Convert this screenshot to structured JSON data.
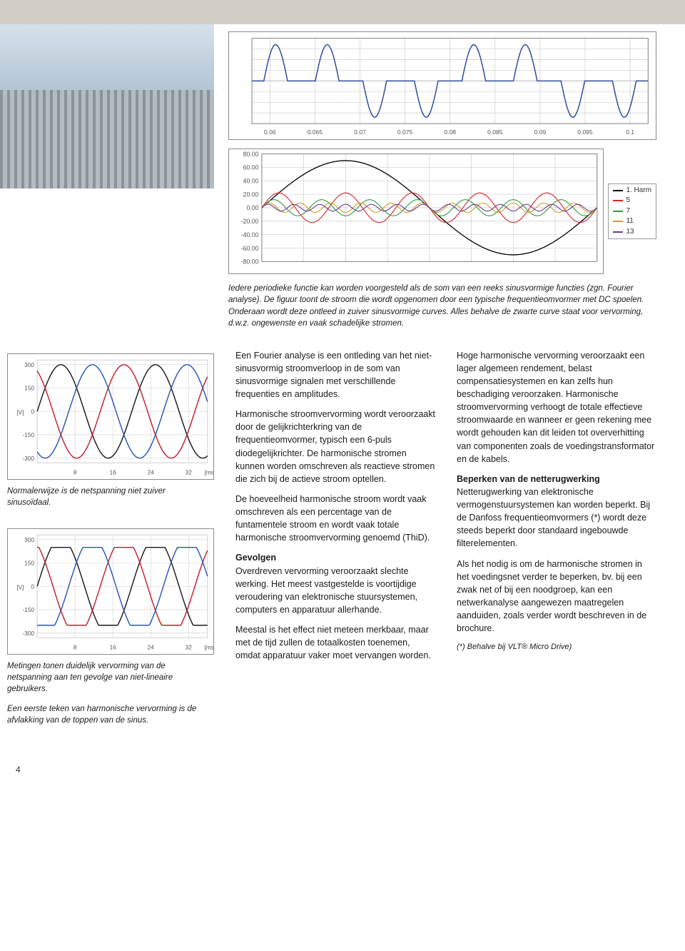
{
  "top_caption": "Iedere periodieke functie kan worden voorgesteld als de som van een reeks sinusvormige functies (zgn. Fourier analyse). De figuur toont de stroom die wordt opgenomen door een typische frequentieomvormer met DC spoelen. Onderaan wordt deze ontleed in zuiver sinusvormige curves. Alles behalve de zwarte curve staat voor vervorming, d.w.z. ongewenste en vaak schadelijke stromen.",
  "chart_pulse": {
    "type": "line",
    "xticks": [
      0.06,
      0.065,
      0.07,
      0.075,
      0.08,
      0.085,
      0.09,
      0.095,
      0.1
    ],
    "xlim": [
      0.058,
      0.102
    ],
    "ylim": [
      -100,
      100
    ],
    "background": "#ffffff",
    "gridline_color": "#c0c0c0",
    "border_color": "#8a8a8a",
    "series": [
      {
        "name": "current",
        "color": "#2e4ea0",
        "width": 1.4
      }
    ],
    "tick_fontsize": 8
  },
  "chart_harmonics": {
    "type": "line",
    "xticks": [
      1,
      2,
      3,
      4,
      5,
      6,
      7,
      8
    ],
    "xlim": [
      0,
      8
    ],
    "ylim": [
      -80,
      80
    ],
    "yticks": [
      -80,
      -60,
      -40,
      -20,
      0,
      20,
      40,
      60,
      80
    ],
    "ytick_labels": [
      "-80.00",
      "-60.00",
      "-40.00",
      "-20.00",
      "0.00",
      "20.00",
      "40.00",
      "60.00",
      "80.00"
    ],
    "background": "#ffffff",
    "gridline_color": "#c0c0c0",
    "border_color": "#8a8a8a",
    "legend_items": [
      {
        "label": "1. Harm",
        "color": "#000000"
      },
      {
        "label": "5",
        "color": "#d8232a"
      },
      {
        "label": "7",
        "color": "#2e9b3e"
      },
      {
        "label": "11",
        "color": "#d29a2a"
      },
      {
        "label": "13",
        "color": "#6a3c8f"
      }
    ],
    "series": [
      {
        "name": "h1",
        "color": "#000000",
        "amp": 70,
        "freq": 1,
        "width": 1.2
      },
      {
        "name": "h5",
        "color": "#d8232a",
        "amp": 22,
        "freq": 5,
        "width": 1
      },
      {
        "name": "h7",
        "color": "#2e9b3e",
        "amp": 12,
        "freq": 7,
        "width": 1
      },
      {
        "name": "h11",
        "color": "#d29a2a",
        "amp": 7,
        "freq": 11,
        "width": 1
      },
      {
        "name": "h13",
        "color": "#6a3c8f",
        "amp": 5,
        "freq": 13,
        "width": 1
      }
    ],
    "tick_fontsize": 7
  },
  "chart_sine": {
    "type": "line",
    "y_axis_label": "[V]",
    "x_axis_label": "[ms]",
    "yticks": [
      -300,
      -150,
      0,
      150,
      300
    ],
    "xticks": [
      8,
      16,
      24,
      32
    ],
    "xlim": [
      0,
      36
    ],
    "ylim": [
      -330,
      330
    ],
    "background": "#ffffff",
    "gridline_color": "#d0d0d0",
    "border_color": "#d0d0d0",
    "series": [
      {
        "name": "L1",
        "color": "#1a1a1a",
        "amp": 300,
        "phase": 0,
        "width": 1.4
      },
      {
        "name": "L2",
        "color": "#c21f2a",
        "amp": 300,
        "phase": 120,
        "width": 1.4
      },
      {
        "name": "L3",
        "color": "#2a55b5",
        "amp": 300,
        "phase": 240,
        "width": 1.4
      }
    ],
    "caption": "Normalerwijze is de netspanning niet zuiver sinusoïdaal."
  },
  "chart_clipped": {
    "type": "line",
    "y_axis_label": "[V]",
    "x_axis_label": "[ms]",
    "yticks": [
      -300,
      -150,
      0,
      150,
      300
    ],
    "xticks": [
      8,
      16,
      24,
      32
    ],
    "xlim": [
      0,
      36
    ],
    "ylim": [
      -330,
      330
    ],
    "background": "#ffffff",
    "gridline_color": "#d0d0d0",
    "border_color": "#d0d0d0",
    "clip_level": 250,
    "series": [
      {
        "name": "L1",
        "color": "#1a1a1a",
        "amp": 310,
        "phase": 0,
        "width": 1.4
      },
      {
        "name": "L2",
        "color": "#c21f2a",
        "amp": 310,
        "phase": 120,
        "width": 1.4
      },
      {
        "name": "L3",
        "color": "#2a55b5",
        "amp": 310,
        "phase": 240,
        "width": 1.4
      }
    ],
    "caption1": "Metingen tonen duidelijk vervorming van de netspanning aan ten gevolge van niet-lineaire gebruikers.",
    "caption2": "Een eerste teken van harmonische vervorming is de afvlakking van de toppen van de sinus."
  },
  "mid": {
    "p1": "Een Fourier analyse is een ontleding van het niet-sinusvormig stroomverloop in de som van sinusvormige signalen met verschillende frequenties en amplitudes.",
    "p2": "Harmonische stroomvervorming wordt veroorzaakt door de gelijkrichterkring van de frequentieomvormer, typisch een 6-puls diodegelijkrichter. De harmonische stromen kunnen worden omschreven als reactieve stromen die zich bij de actieve stroom optellen.",
    "p3": "De hoeveelheid harmonische stroom wordt vaak omschreven als een percentage van de funtamentele stroom en wordt vaak totale harmonische stroomvervorming genoemd (ThiD).",
    "h1": "Gevolgen",
    "p4": "Overdreven vervorming veroorzaakt slechte werking. Het meest vastgestelde is voortijdige veroudering van elektronische stuursystemen, computers en apparatuur allerhande.",
    "p5": "Meestal is het effect niet meteen merkbaar, maar met de tijd zullen de totaalkosten toenemen, omdat apparatuur vaker moet vervangen worden."
  },
  "right": {
    "p1": "Hoge harmonische vervorming veroorzaakt een lager algemeen rendement, belast compensatiesystemen en kan zelfs hun beschadiging veroorzaken. Harmonische stroomvervorming verhoogt de totale effectieve stroomwaarde en wanneer er geen rekening mee wordt gehouden kan dit leiden tot oververhitting van componenten zoals de voedingstransformator en de kabels.",
    "h1": "Beperken van de netterugwerking",
    "p2": "Netterugwerking van elektronische vermogenstuursystemen kan worden beperkt. Bij de Danfoss frequentieomvormers (*) wordt deze steeds beperkt door standaard ingebouwde filterelementen.",
    "p3": "Als het nodig is om de harmonische stromen in het voedingsnet verder te beperken, bv. bij een zwak net of bij een noodgroep, kan een netwerkanalyse aangewezen maatregelen aanduiden, zoals verder wordt beschreven in de brochure.",
    "note": "(*) Behalve bij VLT® Micro Drive)"
  },
  "page_number": "4"
}
